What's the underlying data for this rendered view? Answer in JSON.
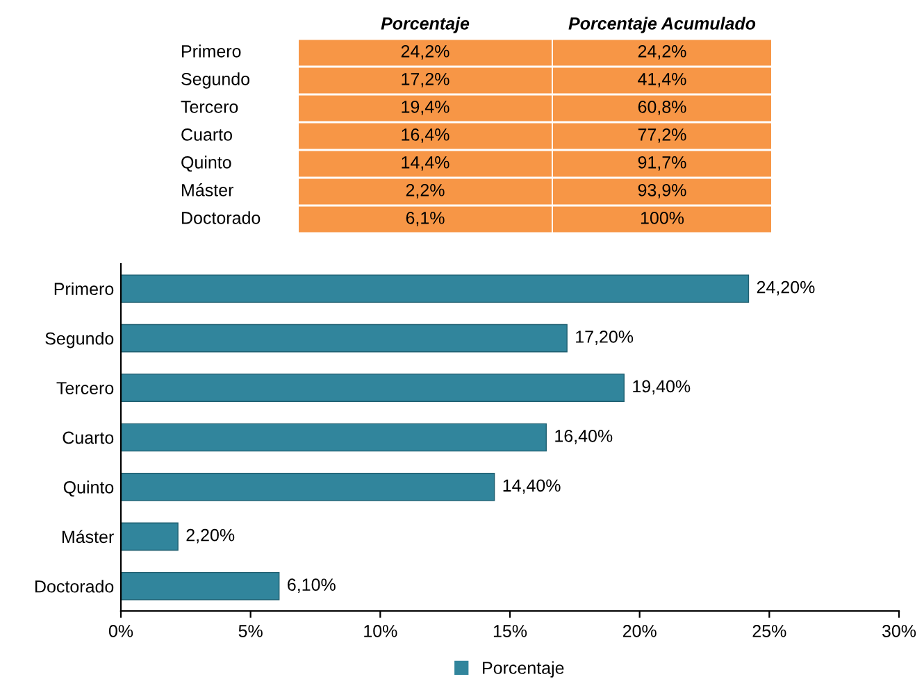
{
  "chart_data": [
    {
      "type": "other",
      "color": "#f79646",
      "categories": [
        "Porcentaje",
        "Porcentaje Acumulado"
      ],
      "y_categories": [
        "Primero",
        "Segundo",
        "Tercero",
        "Cuarto",
        "Quinto",
        "Máster",
        "Doctorado"
      ],
      "cell_labels": [
        [
          "24,2%",
          "24,2%"
        ],
        [
          "17,2%",
          "41,4%"
        ],
        [
          "19,4%",
          "60,8%"
        ],
        [
          "16,4%",
          "77,2%"
        ],
        [
          "14,4%",
          "91,7%"
        ],
        [
          "2,2%",
          "93,9%"
        ],
        [
          "6,1%",
          "100%"
        ]
      ]
    },
    {
      "type": "bar",
      "orientation": "horizontal",
      "categories": [
        "Primero",
        "Segundo",
        "Tercero",
        "Cuarto",
        "Quinto",
        "Máster",
        "Doctorado"
      ],
      "series": [
        {
          "name": "Porcentaje",
          "color": "#31859c",
          "values": [
            24.2,
            17.2,
            19.4,
            16.4,
            14.4,
            2.2,
            6.1
          ],
          "value_labels": [
            "24,20%",
            "17,20%",
            "19,40%",
            "16,40%",
            "14,40%",
            "2,20%",
            "6,10%"
          ]
        }
      ],
      "xlim": [
        0,
        30
      ],
      "xticks": [
        {
          "value": 0,
          "label": "0%"
        },
        {
          "value": 5,
          "label": "5%"
        },
        {
          "value": 10,
          "label": "10%"
        },
        {
          "value": 15,
          "label": "15%"
        },
        {
          "value": 20,
          "label": "20%"
        },
        {
          "value": 25,
          "label": "25%"
        },
        {
          "value": 30,
          "label": "30%"
        }
      ],
      "grid": false,
      "legend": "bottom"
    }
  ]
}
